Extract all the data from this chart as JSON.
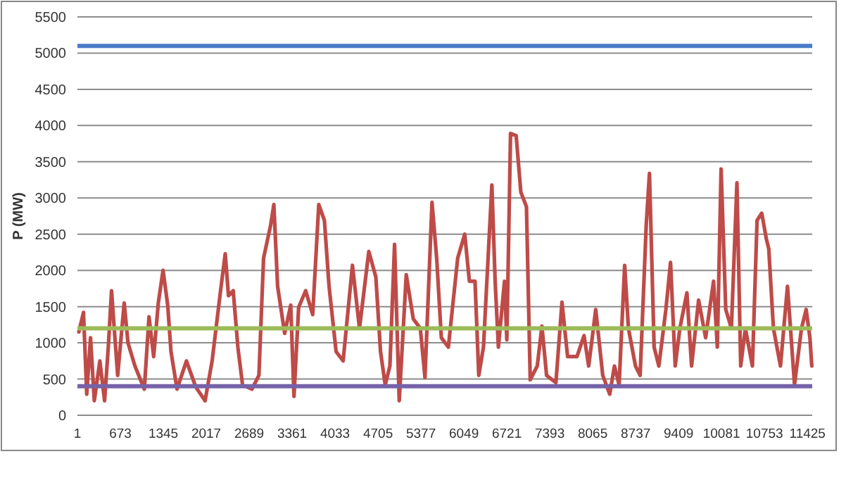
{
  "chart_data": {
    "type": "line",
    "ylabel": "P (MW)",
    "grid": "y",
    "marker": "none",
    "line_style": "solid",
    "xlim": [
      1,
      11500
    ],
    "xticks": [
      1,
      673,
      1345,
      2017,
      2689,
      3361,
      4033,
      4705,
      5377,
      6049,
      6721,
      7393,
      8065,
      8737,
      9409,
      10081,
      10753,
      11425
    ],
    "ylim": [
      0,
      5500
    ],
    "yticks": [
      0,
      500,
      1000,
      1500,
      2000,
      2500,
      3000,
      3500,
      4000,
      4500,
      5000,
      5500
    ],
    "series": [
      {
        "color": "#be4b48",
        "x": [
          23,
          96,
          147,
          206,
          265,
          352,
          426,
          484,
          535,
          572,
          631,
          733,
          792,
          901,
          1048,
          1121,
          1194,
          1267,
          1341,
          1414,
          1465,
          1560,
          1707,
          1853,
          1999,
          2109,
          2241,
          2314,
          2365,
          2439,
          2512,
          2585,
          2731,
          2841,
          2914,
          3024,
          3075,
          3134,
          3244,
          3339,
          3390,
          3463,
          3573,
          3683,
          3778,
          3866,
          3939,
          4049,
          4159,
          4305,
          4415,
          4561,
          4671,
          4744,
          4818,
          4891,
          4964,
          5037,
          5147,
          5257,
          5367,
          5440,
          5550,
          5623,
          5696,
          5806,
          5952,
          6062,
          6135,
          6223,
          6282,
          6355,
          6487,
          6538,
          6589,
          6684,
          6721,
          6779,
          6867,
          6940,
          7028,
          7087,
          7197,
          7270,
          7343,
          7489,
          7584,
          7672,
          7819,
          7929,
          8002,
          8112,
          8222,
          8331,
          8405,
          8478,
          8565,
          8624,
          8734,
          8807,
          8902,
          8953,
          9026,
          9100,
          9210,
          9283,
          9356,
          9429,
          9539,
          9612,
          9722,
          9832,
          9956,
          10015,
          10074,
          10147,
          10235,
          10322,
          10381,
          10454,
          10564,
          10637,
          10710,
          10783,
          10820,
          10893,
          11003,
          11113,
          11223,
          11332,
          11405,
          11464,
          11493
        ],
        "values": [
          1150,
          1420,
          290,
          1070,
          200,
          750,
          200,
          940,
          1720,
          1260,
          550,
          1550,
          1000,
          680,
          360,
          1360,
          810,
          1550,
          2000,
          1520,
          880,
          360,
          750,
          390,
          200,
          750,
          1720,
          2230,
          1650,
          1720,
          940,
          420,
          360,
          550,
          2170,
          2620,
          2910,
          1780,
          1130,
          1520,
          260,
          1490,
          1720,
          1390,
          2910,
          2690,
          1780,
          880,
          750,
          2070,
          1200,
          2260,
          1910,
          880,
          420,
          680,
          2360,
          200,
          1940,
          1330,
          1200,
          520,
          2940,
          2170,
          1070,
          940,
          2170,
          2500,
          1850,
          1850,
          550,
          940,
          3180,
          1850,
          940,
          1850,
          1040,
          3890,
          3860,
          3080,
          2880,
          490,
          680,
          1230,
          550,
          450,
          1560,
          810,
          810,
          1100,
          680,
          1460,
          550,
          290,
          680,
          420,
          2070,
          1200,
          680,
          550,
          2620,
          3340,
          940,
          680,
          1460,
          2110,
          680,
          1200,
          1690,
          680,
          1590,
          1070,
          1850,
          940,
          3400,
          1460,
          1200,
          3210,
          680,
          1200,
          680,
          2690,
          2790,
          2430,
          2300,
          1200,
          680,
          1780,
          420,
          1200,
          1460,
          1070,
          680
        ]
      }
    ],
    "ref_lines": [
      {
        "axis": "y",
        "value": 5100,
        "color": "#4a7bc8"
      },
      {
        "axis": "y",
        "value": 1200,
        "color": "#9bbb59"
      },
      {
        "axis": "y",
        "value": 400,
        "color": "#7662a8"
      }
    ]
  }
}
